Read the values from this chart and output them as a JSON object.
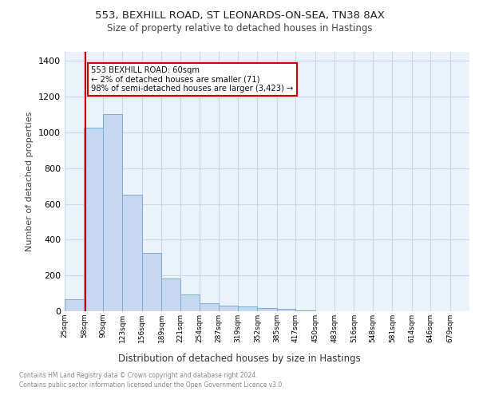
{
  "title1": "553, BEXHILL ROAD, ST LEONARDS-ON-SEA, TN38 8AX",
  "title2": "Size of property relative to detached houses in Hastings",
  "xlabel": "Distribution of detached houses by size in Hastings",
  "ylabel": "Number of detached properties",
  "bin_labels": [
    "25sqm",
    "58sqm",
    "90sqm",
    "123sqm",
    "156sqm",
    "189sqm",
    "221sqm",
    "254sqm",
    "287sqm",
    "319sqm",
    "352sqm",
    "385sqm",
    "417sqm",
    "450sqm",
    "483sqm",
    "516sqm",
    "548sqm",
    "581sqm",
    "614sqm",
    "646sqm",
    "679sqm"
  ],
  "bin_edges": [
    25,
    58,
    90,
    123,
    156,
    189,
    221,
    254,
    287,
    319,
    352,
    385,
    417,
    450,
    483,
    516,
    548,
    581,
    614,
    646,
    679,
    712
  ],
  "bar_heights": [
    65,
    1025,
    1100,
    650,
    325,
    185,
    95,
    45,
    30,
    25,
    20,
    12,
    3,
    1,
    1,
    0,
    0,
    0,
    0,
    0,
    0
  ],
  "bar_color": "#c5d8f0",
  "bar_edge_color": "#7aadd4",
  "red_line_x": 60,
  "ylim": [
    0,
    1450
  ],
  "yticks": [
    0,
    200,
    400,
    600,
    800,
    1000,
    1200,
    1400
  ],
  "annotation_title": "553 BEXHILL ROAD: 60sqm",
  "annotation_line1": "← 2% of detached houses are smaller (71)",
  "annotation_line2": "98% of semi-detached houses are larger (3,423) →",
  "annotation_box_color": "#ffffff",
  "annotation_box_edge_color": "#cc0000",
  "grid_color": "#c8d8e8",
  "bg_color": "#eaf2fb",
  "footer1": "Contains HM Land Registry data © Crown copyright and database right 2024.",
  "footer2": "Contains public sector information licensed under the Open Government Licence v3.0."
}
